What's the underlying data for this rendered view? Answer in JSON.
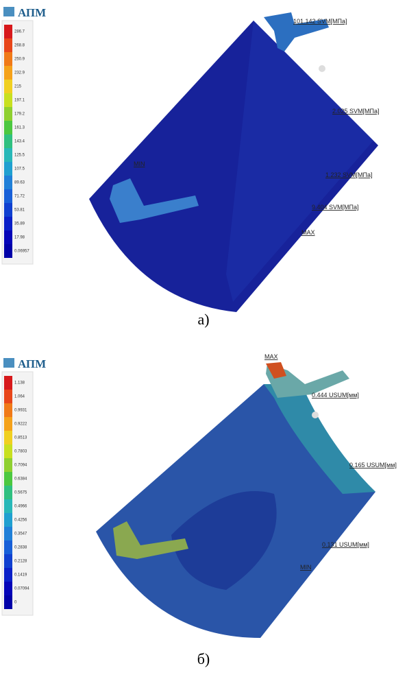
{
  "panels": [
    {
      "logo": "АПМ",
      "legend": [
        "286.7",
        "268.8",
        "250.9",
        "232.9",
        "215",
        "197.1",
        "179.2",
        "161.3",
        "143.4",
        "125.5",
        "107.5",
        "89.63",
        "71.72",
        "53.81",
        "35.89",
        "17.98",
        "0.06957"
      ],
      "annotations": [
        "101.142 SVM[МПа]",
        "2.025 SVM[МПа]",
        "1.232 SVM[МПа]",
        "9.404 SVM[МПа]",
        "MAX",
        "MIN"
      ],
      "caption": "а)"
    },
    {
      "logo": "АПМ",
      "legend": [
        "1.138",
        "1.064",
        "0.9931",
        "0.9222",
        "0.8513",
        "0.7803",
        "0.7094",
        "0.6384",
        "0.5675",
        "0.4966",
        "0.4256",
        "0.3547",
        "0.2838",
        "0.2128",
        "0.1419",
        "0.07094",
        "0"
      ],
      "annotations": [
        "MAX",
        "0.444 USUM[мм]",
        "0.165 USUM[мм]",
        "0.131 USUM[мм]",
        "MIN"
      ],
      "caption": "б)"
    }
  ]
}
